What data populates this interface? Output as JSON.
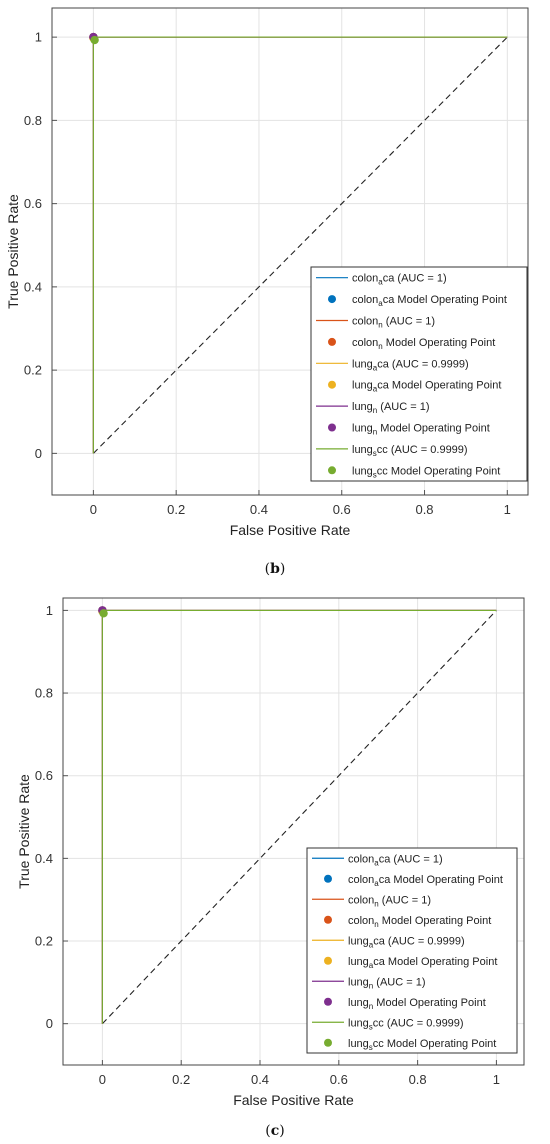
{
  "panels": [
    {
      "caption_open": "(",
      "caption_letter": "b",
      "caption_close": ")",
      "chart_data": {
        "type": "line",
        "xlabel": "False Positive Rate",
        "ylabel": "True Positive Rate",
        "xlim": [
          -0.1,
          1.05
        ],
        "ylim": [
          -0.1,
          1.07
        ],
        "xticks": [
          "0",
          "0.2",
          "0.4",
          "0.6",
          "0.8",
          "1"
        ],
        "yticks": [
          "0",
          "0.2",
          "0.4",
          "0.6",
          "0.8",
          "1"
        ],
        "grid": true,
        "legend_position": "bottom-right",
        "diagonal": {
          "x": [
            0,
            1
          ],
          "y": [
            0,
            1
          ],
          "style": "dashed"
        },
        "series": [
          {
            "base": "colon",
            "sub": "a",
            "tail": "ca",
            "auc": " (AUC = 1)",
            "op_suffix": " Model Operating Point",
            "color": "#0072BD",
            "op_color": "#0072BD",
            "x": [
              0,
              0,
              1
            ],
            "y": [
              0,
              1,
              1
            ],
            "op": [
              0,
              1
            ]
          },
          {
            "base": "colon",
            "sub": "n",
            "tail": "",
            "auc": " (AUC = 1)",
            "op_suffix": " Model Operating Point",
            "color": "#D95319",
            "op_color": "#D95319",
            "x": [
              0,
              0,
              1
            ],
            "y": [
              0,
              1,
              1
            ],
            "op": [
              0,
              1
            ]
          },
          {
            "base": "lung",
            "sub": "a",
            "tail": "ca",
            "auc": " (AUC = 0.9999)",
            "op_suffix": " Model Operating Point",
            "color": "#EDB120",
            "op_color": "#EDB120",
            "x": [
              0,
              0,
              1
            ],
            "y": [
              0,
              1,
              1
            ],
            "op": [
              0,
              0.998
            ]
          },
          {
            "base": "lung",
            "sub": "n",
            "tail": "",
            "auc": " (AUC = 1)",
            "op_suffix": " Model Operating Point",
            "color": "#7E2F8E",
            "op_color": "#7E2F8E",
            "x": [
              0,
              0,
              1
            ],
            "y": [
              0,
              1,
              1
            ],
            "op": [
              0,
              1
            ]
          },
          {
            "base": "lung",
            "sub": "s",
            "tail": "cc",
            "auc": " (AUC = 0.9999)",
            "op_suffix": " Model Operating Point",
            "color": "#77AC30",
            "op_color": "#77AC30",
            "x": [
              0,
              0,
              1
            ],
            "y": [
              0,
              1,
              1
            ],
            "op": [
              0.003,
              0.993
            ]
          }
        ]
      }
    },
    {
      "caption_open": "(",
      "caption_letter": "c",
      "caption_close": ")",
      "chart_data": {
        "type": "line",
        "xlabel": "False Positive Rate",
        "ylabel": "True Positive Rate",
        "xlim": [
          -0.1,
          1.07
        ],
        "ylim": [
          -0.1,
          1.03
        ],
        "xticks": [
          "0",
          "0.2",
          "0.4",
          "0.6",
          "0.8",
          "1"
        ],
        "yticks": [
          "0",
          "0.2",
          "0.4",
          "0.6",
          "0.8",
          "1"
        ],
        "grid": true,
        "legend_position": "bottom-right",
        "diagonal": {
          "x": [
            0,
            1
          ],
          "y": [
            0,
            1
          ],
          "style": "dashed"
        },
        "series": [
          {
            "base": "colon",
            "sub": "a",
            "tail": "ca",
            "auc": " (AUC = 1)",
            "op_suffix": " Model Operating Point",
            "color": "#0072BD",
            "op_color": "#0072BD",
            "x": [
              0,
              0,
              1
            ],
            "y": [
              0,
              1,
              1
            ],
            "op": [
              0,
              1
            ]
          },
          {
            "base": "colon",
            "sub": "n",
            "tail": "",
            "auc": " (AUC = 1)",
            "op_suffix": " Model Operating Point",
            "color": "#D95319",
            "op_color": "#D95319",
            "x": [
              0,
              0,
              1
            ],
            "y": [
              0,
              1,
              1
            ],
            "op": [
              0,
              1
            ]
          },
          {
            "base": "lung",
            "sub": "a",
            "tail": "ca",
            "auc": " (AUC = 0.9999)",
            "op_suffix": " Model Operating Point",
            "color": "#EDB120",
            "op_color": "#EDB120",
            "x": [
              0,
              0,
              1
            ],
            "y": [
              0,
              1,
              1
            ],
            "op": [
              0,
              0.998
            ]
          },
          {
            "base": "lung",
            "sub": "n",
            "tail": "",
            "auc": " (AUC = 1)",
            "op_suffix": " Model Operating Point",
            "color": "#7E2F8E",
            "op_color": "#7E2F8E",
            "x": [
              0,
              0,
              1
            ],
            "y": [
              0,
              1,
              1
            ],
            "op": [
              0,
              1
            ]
          },
          {
            "base": "lung",
            "sub": "s",
            "tail": "cc",
            "auc": " (AUC = 0.9999)",
            "op_suffix": " Model Operating Point",
            "color": "#77AC30",
            "op_color": "#77AC30",
            "x": [
              0,
              0,
              1
            ],
            "y": [
              0,
              1,
              1
            ],
            "op": [
              0.003,
              0.993
            ]
          }
        ]
      }
    }
  ]
}
